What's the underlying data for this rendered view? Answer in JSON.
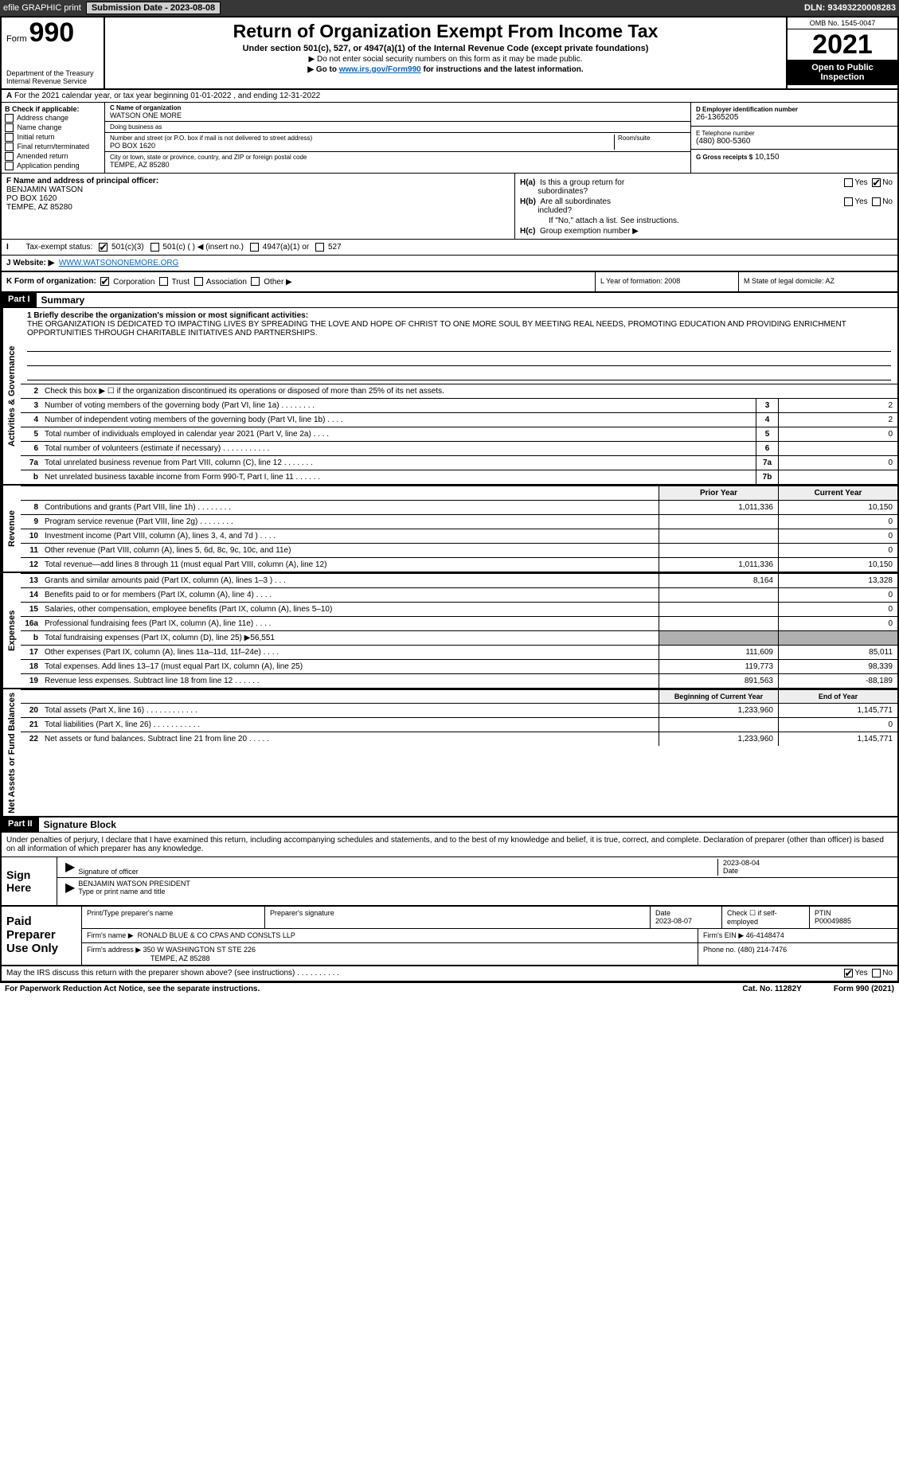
{
  "topbar": {
    "efile": "efile GRAPHIC print",
    "submission_label": "Submission Date - 2023-08-08",
    "dln_label": "DLN: 93493220008283"
  },
  "header": {
    "form_word": "Form",
    "form_number": "990",
    "dept1": "Department of the Treasury",
    "dept2": "Internal Revenue Service",
    "title": "Return of Organization Exempt From Income Tax",
    "sub1": "Under section 501(c), 527, or 4947(a)(1) of the Internal Revenue Code (except private foundations)",
    "sub2": "▶ Do not enter social security numbers on this form as it may be made public.",
    "sub3_pre": "▶ Go to ",
    "sub3_link": "www.irs.gov/Form990",
    "sub3_post": " for instructions and the latest information.",
    "omb": "OMB No. 1545-0047",
    "year": "2021",
    "open": "Open to Public Inspection"
  },
  "row_a": {
    "prefix": "A",
    "text": "For the 2021 calendar year, or tax year beginning 01-01-2022   , and ending 12-31-2022"
  },
  "col_b": {
    "header": "B Check if applicable:",
    "items": [
      "Address change",
      "Name change",
      "Initial return",
      "Final return/terminated",
      "Amended return",
      "Application pending"
    ]
  },
  "col_c": {
    "name_label": "C Name of organization",
    "name": "WATSON ONE MORE",
    "dba_label": "Doing business as",
    "addr_label": "Number and street (or P.O. box if mail is not delivered to street address)",
    "room_label": "Room/suite",
    "addr": "PO BOX 1620",
    "city_label": "City or town, state or province, country, and ZIP or foreign postal code",
    "city": "TEMPE, AZ  85280"
  },
  "col_d": {
    "d_label": "D Employer identification number",
    "d_val": "26-1365205",
    "e_label": "E Telephone number",
    "e_val": "(480) 800-5360",
    "g_label": "G Gross receipts $",
    "g_val": "10,150"
  },
  "col_f": {
    "label": "F  Name and address of principal officer:",
    "name": "BENJAMIN WATSON",
    "addr1": "PO BOX 1620",
    "addr2": "TEMPE, AZ  85280"
  },
  "col_h": {
    "ha_label": "H(a)  Is this a group return for subordinates?",
    "hb_label": "H(b)  Are all subordinates included?",
    "hb_note": "If \"No,\" attach a list. See instructions.",
    "hc_label": "H(c)  Group exemption number ▶",
    "yes": "Yes",
    "no": "No"
  },
  "row_i": {
    "label": "Tax-exempt status:",
    "opt1": "501(c)(3)",
    "opt2": "501(c) (  ) ◀ (insert no.)",
    "opt3": "4947(a)(1) or",
    "opt4": "527"
  },
  "row_j": {
    "label": "J     Website: ▶",
    "val": "WWW.WATSONONEMORE.ORG"
  },
  "row_k": {
    "label": "K Form of organization:",
    "opts": [
      "Corporation",
      "Trust",
      "Association",
      "Other ▶"
    ]
  },
  "row_l": {
    "label": "L Year of formation: 2008"
  },
  "row_m": {
    "label": "M State of legal domicile: AZ"
  },
  "part1_label": "Part I",
  "part1_title": "Summary",
  "mission": {
    "line1_label": "1   Briefly describe the organization's mission or most significant activities:",
    "text": "THE ORGANIZATION IS DEDICATED TO IMPACTING LIVES BY SPREADING THE LOVE AND HOPE OF CHRIST TO ONE MORE SOUL BY MEETING REAL NEEDS, PROMOTING EDUCATION AND PROVIDING ENRICHMENT OPPORTUNITIES THROUGH CHARITABLE INITIATIVES AND PARTNERSHIPS."
  },
  "section_labels": {
    "gov": "Activities & Governance",
    "rev": "Revenue",
    "exp": "Expenses",
    "net": "Net Assets or Fund Balances"
  },
  "gov_lines": [
    {
      "n": "2",
      "t": "Check this box ▶ ☐  if the organization discontinued its operations or disposed of more than 25% of its net assets.",
      "box": "",
      "v": ""
    },
    {
      "n": "3",
      "t": "Number of voting members of the governing body (Part VI, line 1a)   .    .    .    .    .    .    .    .",
      "box": "3",
      "v": "2"
    },
    {
      "n": "4",
      "t": "Number of independent voting members of the governing body (Part VI, line 1b)   .    .    .    .",
      "box": "4",
      "v": "2"
    },
    {
      "n": "5",
      "t": "Total number of individuals employed in calendar year 2021 (Part V, line 2a)   .    .    .    .",
      "box": "5",
      "v": "0"
    },
    {
      "n": "6",
      "t": "Total number of volunteers (estimate if necessary)   .    .    .    .    .    .    .    .    .    .    .",
      "box": "6",
      "v": ""
    },
    {
      "n": "7a",
      "t": "Total unrelated business revenue from Part VIII, column (C), line 12   .    .    .    .    .    .    .",
      "box": "7a",
      "v": "0"
    },
    {
      "n": "b",
      "t": "Net unrelated business taxable income from Form 990-T, Part I, line 11   .    .    .    .    .    .",
      "box": "7b",
      "v": ""
    }
  ],
  "col_hdrs": {
    "prior": "Prior Year",
    "current": "Current Year",
    "boy": "Beginning of Current Year",
    "eoy": "End of Year"
  },
  "rev_lines": [
    {
      "n": "8",
      "t": "Contributions and grants (Part VIII, line 1h)   .    .    .    .    .    .    .    .",
      "p": "1,011,336",
      "c": "10,150"
    },
    {
      "n": "9",
      "t": "Program service revenue (Part VIII, line 2g)   .    .    .    .    .    .    .    .",
      "p": "",
      "c": "0"
    },
    {
      "n": "10",
      "t": "Investment income (Part VIII, column (A), lines 3, 4, and 7d )   .    .    .    .",
      "p": "",
      "c": "0"
    },
    {
      "n": "11",
      "t": "Other revenue (Part VIII, column (A), lines 5, 6d, 8c, 9c, 10c, and 11e)",
      "p": "",
      "c": "0"
    },
    {
      "n": "12",
      "t": "Total revenue—add lines 8 through 11 (must equal Part VIII, column (A), line 12)",
      "p": "1,011,336",
      "c": "10,150"
    }
  ],
  "exp_lines": [
    {
      "n": "13",
      "t": "Grants and similar amounts paid (Part IX, column (A), lines 1–3 )   .    .    .",
      "p": "8,164",
      "c": "13,328"
    },
    {
      "n": "14",
      "t": "Benefits paid to or for members (Part IX, column (A), line 4)   .    .    .    .",
      "p": "",
      "c": "0"
    },
    {
      "n": "15",
      "t": "Salaries, other compensation, employee benefits (Part IX, column (A), lines 5–10)",
      "p": "",
      "c": "0"
    },
    {
      "n": "16a",
      "t": "Professional fundraising fees (Part IX, column (A), line 11e)   .    .    .    .",
      "p": "",
      "c": "0"
    },
    {
      "n": "b",
      "t": "Total fundraising expenses (Part IX, column (D), line 25) ▶56,551",
      "p": "SHADE",
      "c": "SHADE"
    },
    {
      "n": "17",
      "t": "Other expenses (Part IX, column (A), lines 11a–11d, 11f–24e)   .    .    .    .",
      "p": "111,609",
      "c": "85,011"
    },
    {
      "n": "18",
      "t": "Total expenses. Add lines 13–17 (must equal Part IX, column (A), line 25)",
      "p": "119,773",
      "c": "98,339"
    },
    {
      "n": "19",
      "t": "Revenue less expenses. Subtract line 18 from line 12   .    .    .    .    .    .",
      "p": "891,563",
      "c": "-88,189"
    }
  ],
  "net_lines": [
    {
      "n": "20",
      "t": "Total assets (Part X, line 16)   .    .    .    .    .    .    .    .    .    .    .    .",
      "p": "1,233,960",
      "c": "1,145,771"
    },
    {
      "n": "21",
      "t": "Total liabilities (Part X, line 26)   .    .    .    .    .    .    .    .    .    .    .",
      "p": "",
      "c": "0"
    },
    {
      "n": "22",
      "t": "Net assets or fund balances. Subtract line 21 from line 20   .    .    .    .    .",
      "p": "1,233,960",
      "c": "1,145,771"
    }
  ],
  "part2_label": "Part II",
  "part2_title": "Signature Block",
  "sig": {
    "decl": "Under penalties of perjury, I declare that I have examined this return, including accompanying schedules and statements, and to the best of my knowledge and belief, it is true, correct, and complete. Declaration of preparer (other than officer) is based on all information of which preparer has any knowledge.",
    "sign_here": "Sign Here",
    "sig_officer": "Signature of officer",
    "date": "Date",
    "date_val": "2023-08-04",
    "name": "BENJAMIN WATSON  PRESIDENT",
    "name_label": "Type or print name and title"
  },
  "prep": {
    "label": "Paid Preparer Use Only",
    "h1": "Print/Type preparer's name",
    "h2": "Preparer's signature",
    "h3": "Date",
    "h3v": "2023-08-07",
    "h4": "Check ☐ if self-employed",
    "h5": "PTIN",
    "h5v": "P00049885",
    "firm_label": "Firm's name    ▶",
    "firm": "RONALD BLUE & CO CPAS AND CONSLTS LLP",
    "ein_label": "Firm's EIN ▶",
    "ein": "46-4148474",
    "addr_label": "Firm's address ▶",
    "addr1": "350 W WASHINGTON ST STE 226",
    "addr2": "TEMPE, AZ  85288",
    "phone_label": "Phone no.",
    "phone": "(480) 214-7476"
  },
  "footer": {
    "discuss": "May the IRS discuss this return with the preparer shown above? (see instructions)   .    .    .    .    .    .    .    .    .    .",
    "yes": "Yes",
    "no": "No",
    "paperwork": "For Paperwork Reduction Act Notice, see the separate instructions.",
    "cat": "Cat. No. 11282Y",
    "form": "Form 990 (2021)"
  },
  "colors": {
    "topbar_bg": "#373737",
    "link": "#0066cc",
    "shade": "#b0b0b0"
  }
}
